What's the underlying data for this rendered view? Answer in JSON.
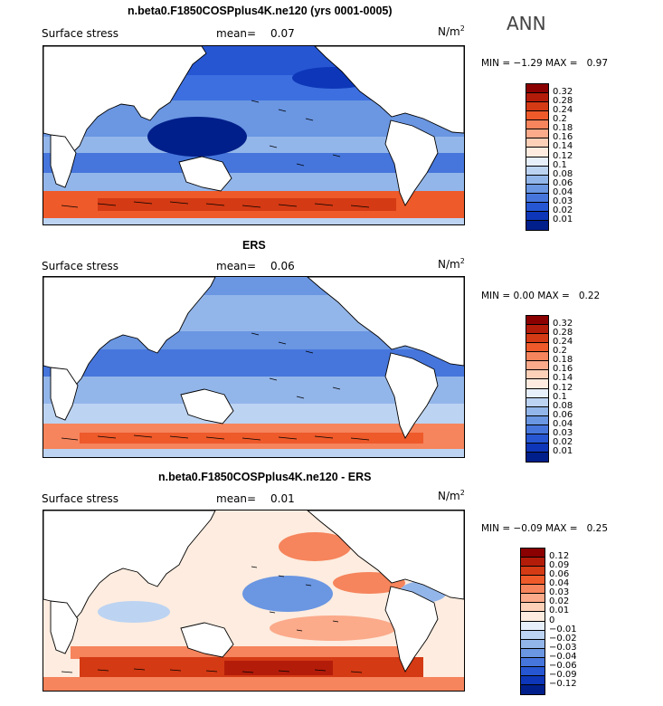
{
  "season": "ANN",
  "panels": [
    {
      "title": "n.beta0.F1850COSPplus4K.ne120 (yrs 0001-0005)",
      "variable": "Surface stress",
      "mean_label": "mean=",
      "mean": "0.07",
      "units_base": "N/m",
      "units_exp": "2",
      "min_label": "MIN =",
      "min": "−1.29",
      "max_label": "MAX =",
      "max": "0.97",
      "levels": [
        "0.32",
        "0.28",
        "0.24",
        "0.2",
        "0.18",
        "0.16",
        "0.14",
        "0.12",
        "0.1",
        "0.08",
        "0.06",
        "0.04",
        "0.03",
        "0.02",
        "0.01"
      ],
      "colors": [
        "#8b0000",
        "#b41c0a",
        "#d43a14",
        "#ee5a2a",
        "#f6845c",
        "#fbaa8a",
        "#fdd0b8",
        "#fdecdf",
        "#e6effa",
        "#bcd3f2",
        "#93b6ea",
        "#6a96e2",
        "#4676dc",
        "#2656d2",
        "#0d37b8",
        "#001f8a"
      ]
    },
    {
      "title": "ERS",
      "variable": "Surface stress",
      "mean_label": "mean=",
      "mean": "0.06",
      "units_base": "N/m",
      "units_exp": "2",
      "min_label": "MIN =",
      "min": "0.00",
      "max_label": "MAX =",
      "max": "0.22",
      "levels": [
        "0.32",
        "0.28",
        "0.24",
        "0.2",
        "0.18",
        "0.16",
        "0.14",
        "0.12",
        "0.1",
        "0.08",
        "0.06",
        "0.04",
        "0.03",
        "0.02",
        "0.01"
      ],
      "colors": [
        "#8b0000",
        "#b41c0a",
        "#d43a14",
        "#ee5a2a",
        "#f6845c",
        "#fbaa8a",
        "#fdd0b8",
        "#fdecdf",
        "#e6effa",
        "#bcd3f2",
        "#93b6ea",
        "#6a96e2",
        "#4676dc",
        "#2656d2",
        "#0d37b8",
        "#001f8a"
      ]
    },
    {
      "title": "n.beta0.F1850COSPplus4K.ne120 - ERS",
      "variable": "Surface stress",
      "mean_label": "mean=",
      "mean": "0.01",
      "units_base": "N/m",
      "units_exp": "2",
      "min_label": "MIN =",
      "min": "−0.09",
      "max_label": "MAX =",
      "max": "0.25",
      "levels": [
        "0.12",
        "0.09",
        "0.06",
        "0.04",
        "0.03",
        "0.02",
        "0.01",
        "0",
        "−0.01",
        "−0.02",
        "−0.03",
        "−0.04",
        "−0.06",
        "−0.09",
        "−0.12"
      ],
      "colors": [
        "#8b0000",
        "#b41c0a",
        "#d43a14",
        "#ee5a2a",
        "#f6845c",
        "#fbaa8a",
        "#fdd0b8",
        "#fdecdf",
        "#e6effa",
        "#bcd3f2",
        "#93b6ea",
        "#6a96e2",
        "#4676dc",
        "#2656d2",
        "#0d37b8",
        "#001f8a"
      ]
    }
  ]
}
